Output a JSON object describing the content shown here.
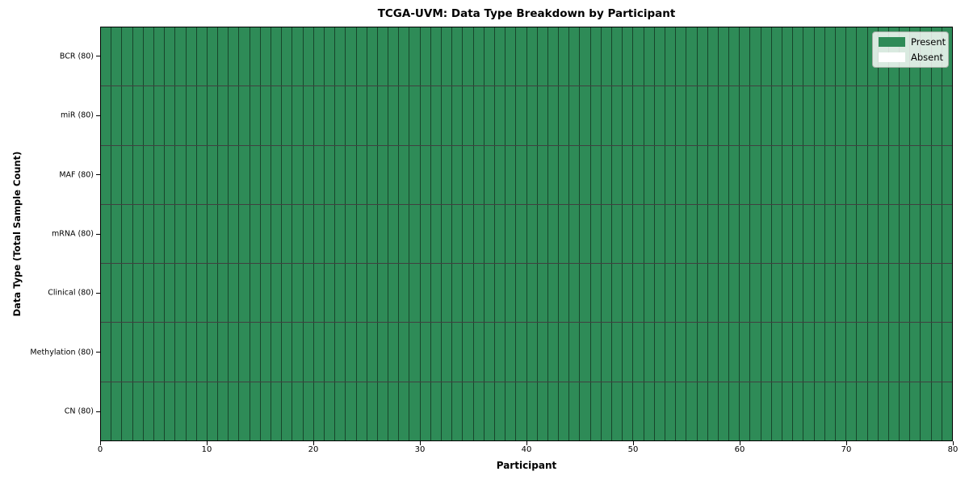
{
  "chart_data": {
    "type": "heatmap",
    "title": "TCGA-UVM: Data Type Breakdown by Participant",
    "xlabel": "Participant",
    "ylabel": "Data Type (Total Sample Count)",
    "xlim": [
      0,
      80
    ],
    "x_ticks": [
      0,
      10,
      20,
      30,
      40,
      50,
      60,
      70,
      80
    ],
    "n_participants": 80,
    "grid": "cell-borders",
    "all_cells_present": true,
    "rows": [
      {
        "label": "BCR (80)",
        "data_type": "BCR",
        "total_samples": 80,
        "present_count": 80,
        "absent_count": 0
      },
      {
        "label": "miR (80)",
        "data_type": "miR",
        "total_samples": 80,
        "present_count": 80,
        "absent_count": 0
      },
      {
        "label": "MAF (80)",
        "data_type": "MAF",
        "total_samples": 80,
        "present_count": 80,
        "absent_count": 0
      },
      {
        "label": "mRNA (80)",
        "data_type": "mRNA",
        "total_samples": 80,
        "present_count": 80,
        "absent_count": 0
      },
      {
        "label": "Clinical (80)",
        "data_type": "Clinical",
        "total_samples": 80,
        "present_count": 80,
        "absent_count": 0
      },
      {
        "label": "Methylation (80)",
        "data_type": "Methylation",
        "total_samples": 80,
        "present_count": 80,
        "absent_count": 0
      },
      {
        "label": "CN (80)",
        "data_type": "CN",
        "total_samples": 80,
        "present_count": 80,
        "absent_count": 0
      }
    ],
    "legend": [
      {
        "label": "Present",
        "color": "#2e8b57"
      },
      {
        "label": "Absent",
        "color": "#ffffff"
      }
    ],
    "legend_position": "upper right",
    "colors": {
      "present": "#2e8b57",
      "absent": "#ffffff",
      "cell_edge": "#1c3a28",
      "background": "#ffffff"
    }
  }
}
